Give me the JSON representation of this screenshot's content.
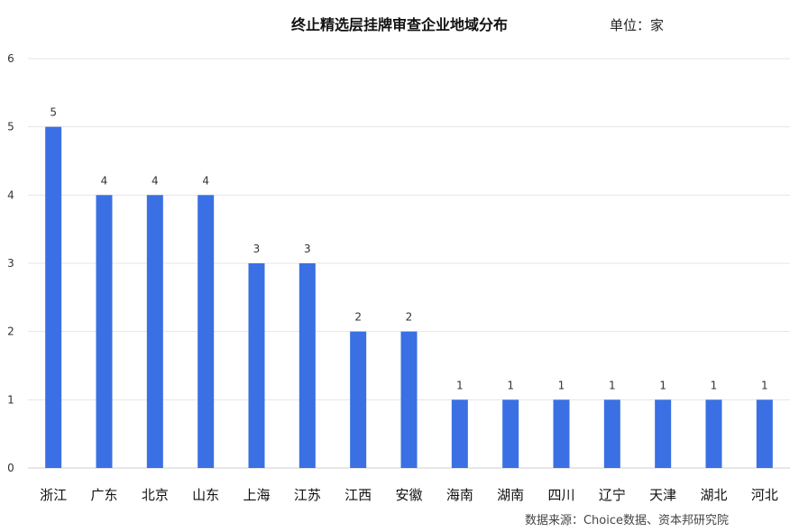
{
  "chart_data": {
    "type": "bar",
    "title": "终止精选层挂牌审查企业地域分布",
    "unit_label": "单位：家",
    "source": "数据来源：Choice数据、资本邦研究院",
    "categories": [
      "浙江",
      "广东",
      "北京",
      "山东",
      "上海",
      "江苏",
      "江西",
      "安徽",
      "海南",
      "湖南",
      "四川",
      "辽宁",
      "天津",
      "湖北",
      "河北"
    ],
    "values": [
      5,
      4,
      4,
      4,
      3,
      3,
      2,
      2,
      1,
      1,
      1,
      1,
      1,
      1,
      1
    ],
    "ylim": [
      0,
      6
    ],
    "yticks": [
      "0",
      "1",
      "2",
      "3",
      "4",
      "5",
      "6"
    ],
    "grid": true,
    "bar_color": "#3a70e3"
  }
}
